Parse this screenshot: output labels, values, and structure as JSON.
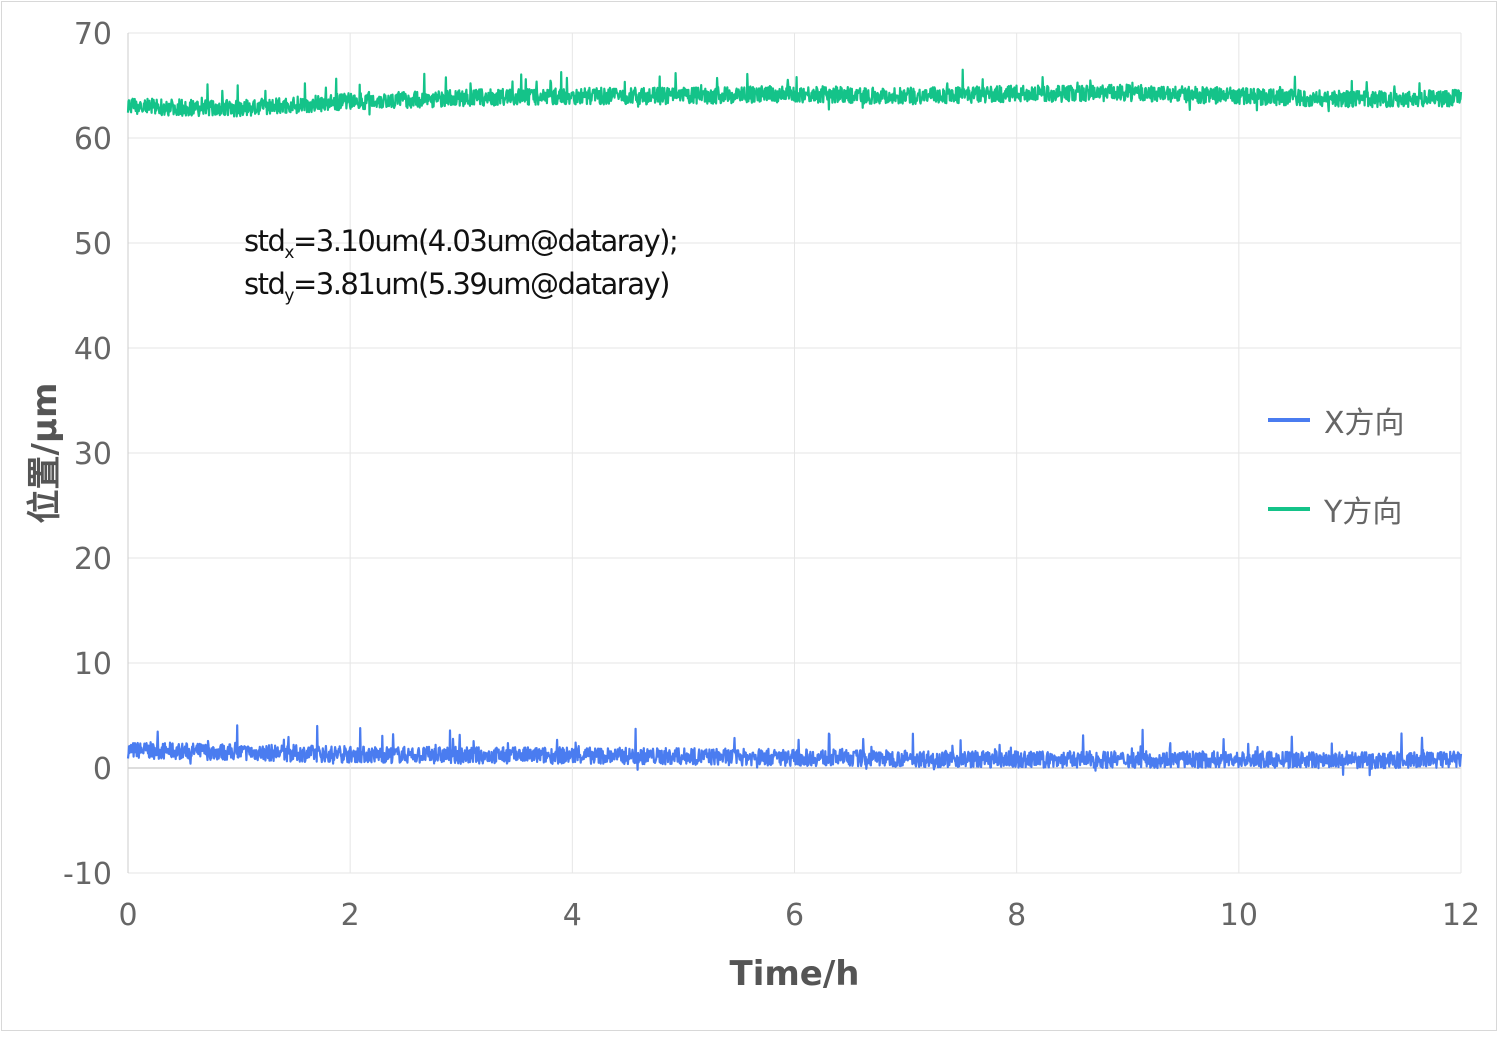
{
  "chart_data": {
    "type": "line",
    "xlabel": "Time/h",
    "ylabel": "位置/μm",
    "xlim": [
      0,
      12
    ],
    "ylim": [
      -10,
      70
    ],
    "xticks": [
      "0",
      "2",
      "4",
      "6",
      "8",
      "10",
      "12"
    ],
    "yticks": [
      "-10",
      "0",
      "10",
      "20",
      "30",
      "40",
      "50",
      "60",
      "70"
    ],
    "grid": true,
    "legend_position": "right",
    "series": [
      {
        "name": "X方向",
        "color": "#4a7cf0",
        "x": [
          0,
          1,
          2,
          3,
          4,
          5,
          6,
          7,
          8,
          9,
          10,
          11,
          12
        ],
        "y": [
          1.7,
          1.5,
          1.3,
          1.2,
          1.2,
          1.1,
          1.0,
          0.9,
          0.8,
          0.8,
          0.8,
          0.7,
          0.8
        ]
      },
      {
        "name": "Y方向",
        "color": "#14c389",
        "x": [
          0,
          1,
          2,
          3,
          4,
          5,
          6,
          7,
          8,
          9,
          10,
          11,
          12
        ],
        "y": [
          63.0,
          62.8,
          63.5,
          63.8,
          64.0,
          64.0,
          64.2,
          64.0,
          64.2,
          64.3,
          64.0,
          63.7,
          63.8
        ]
      }
    ],
    "annotations": {
      "line1_prefix": "std",
      "line1_sub": "x",
      "line1_rest": "=3.10um(4.03um@dataray);",
      "line2_prefix": "std",
      "line2_sub": "y",
      "line2_rest": "=3.81um(5.39um@dataray)"
    }
  }
}
